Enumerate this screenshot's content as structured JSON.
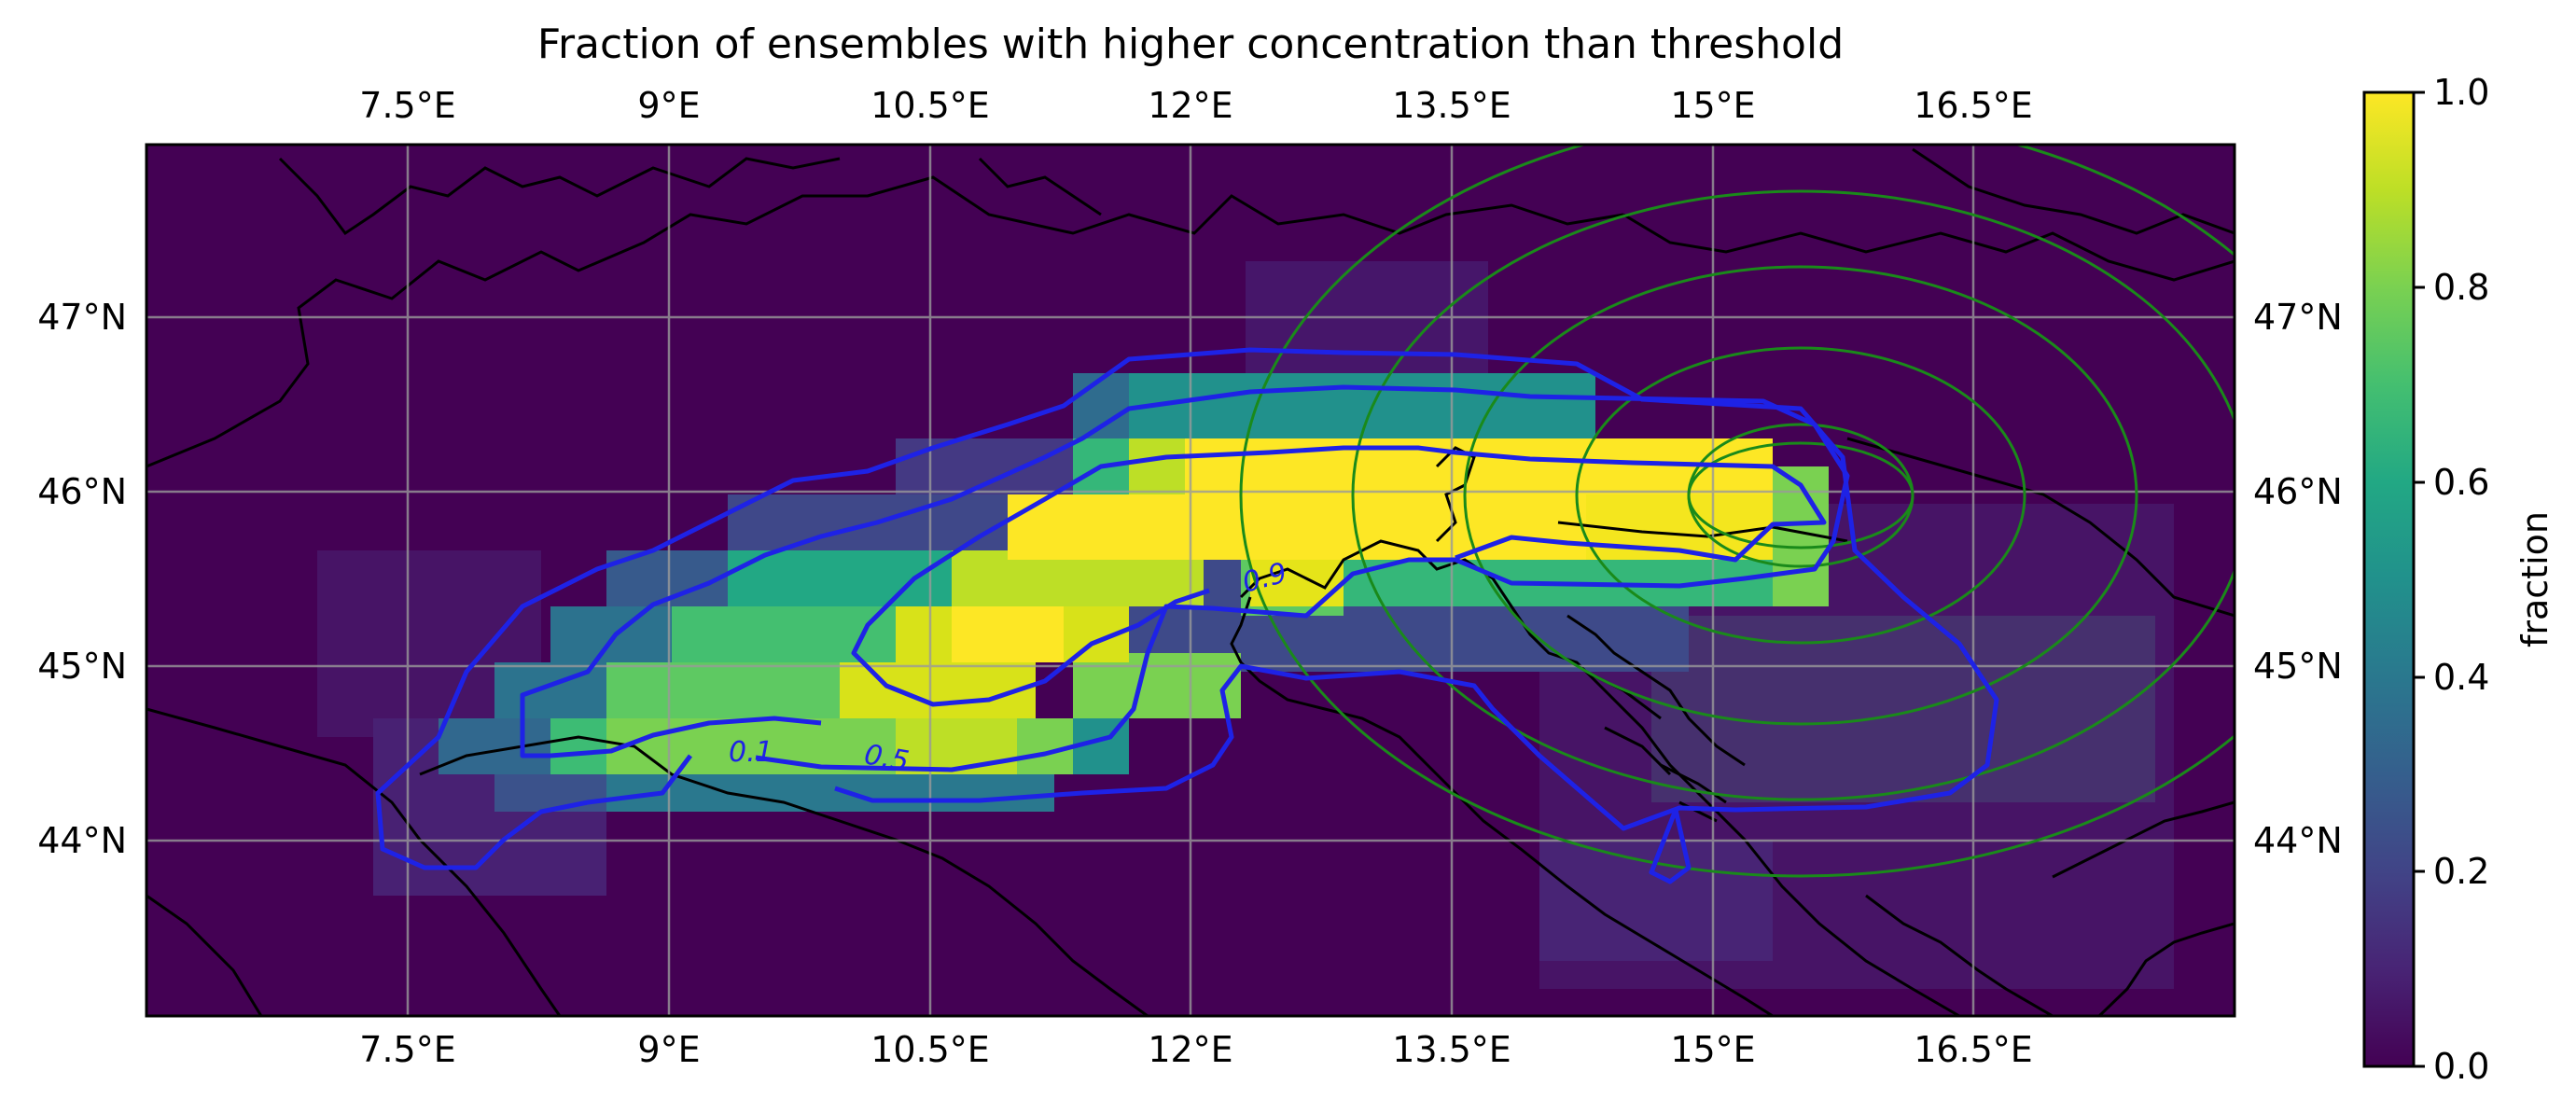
{
  "title": "Fraction of ensembles with higher concentration than threshold",
  "lon_ticks": [
    "7.5°E",
    "9°E",
    "10.5°E",
    "12°E",
    "13.5°E",
    "15°E",
    "16.5°E"
  ],
  "lat_ticks": [
    "47°N",
    "46°N",
    "45°N",
    "44°N"
  ],
  "colorbar": {
    "label": "fraction",
    "ticks": [
      "0.0",
      "0.2",
      "0.4",
      "0.6",
      "0.8",
      "1.0"
    ],
    "colormap": "viridis",
    "range": [
      0,
      1
    ]
  },
  "contour_labels": [
    "0.1",
    "0.5",
    "0.9"
  ],
  "colors": {
    "contour": "#1e22e6",
    "rings": "#1a8a1a",
    "coastline": "#000000",
    "grid": "#9a9a9a",
    "background_cell": "#440154"
  },
  "map_extent": {
    "lon": [
      6,
      18
    ],
    "lat": [
      43,
      48
    ]
  }
}
